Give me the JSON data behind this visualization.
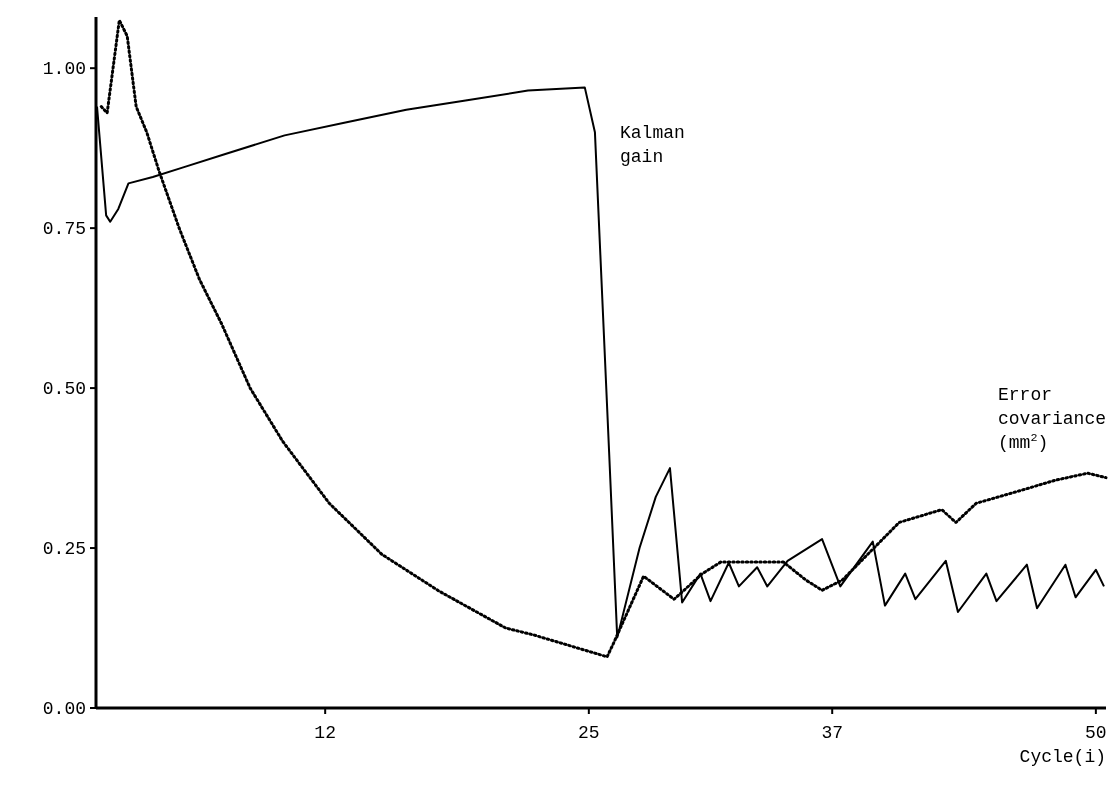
{
  "chart_data": {
    "type": "line",
    "xlabel": "Cycle(i)",
    "xlim": [
      0.7,
      50.5
    ],
    "xticks": [
      12,
      25,
      37,
      50
    ],
    "ylim": [
      0,
      1.08
    ],
    "yticks": [
      {
        "value": 1,
        "label": "1.00"
      },
      {
        "value": 0.75,
        "label": "0.75"
      },
      {
        "value": 0.5,
        "label": "0.50"
      },
      {
        "value": 0.25,
        "label": "0.25"
      },
      {
        "value": 0,
        "label": "0.00"
      }
    ],
    "grid": false,
    "marker": "none",
    "series": [
      {
        "name": "Kalman gain",
        "color": "#000000",
        "line_style": "solid",
        "x": [
          0.75,
          1.2,
          1.4,
          1.8,
          2.3,
          3.5,
          5,
          7,
          10,
          13,
          16,
          19,
          22,
          24.8,
          25.3,
          26,
          26.4,
          27.5,
          28.3,
          29,
          29.6,
          30.5,
          31,
          31.9,
          32.4,
          33.3,
          33.8,
          34.8,
          36.5,
          37.4,
          39,
          39.6,
          40.6,
          41.1,
          42.6,
          43.2,
          44.6,
          45.1,
          46.6,
          47.1,
          48.5,
          49,
          50,
          50.4
        ],
        "values": [
          0.94,
          0.77,
          0.76,
          0.78,
          0.82,
          0.83,
          0.845,
          0.865,
          0.895,
          0.915,
          0.935,
          0.95,
          0.965,
          0.97,
          0.9,
          0.4,
          0.11,
          0.25,
          0.33,
          0.375,
          0.165,
          0.21,
          0.167,
          0.227,
          0.19,
          0.22,
          0.19,
          0.23,
          0.264,
          0.19,
          0.26,
          0.16,
          0.21,
          0.17,
          0.23,
          0.15,
          0.21,
          0.167,
          0.224,
          0.156,
          0.224,
          0.173,
          0.216,
          0.19
        ]
      },
      {
        "name": "Error covariance (mm$^{2}$)",
        "color": "#000000",
        "line_style": "dotted",
        "x": [
          0.96,
          1.25,
          1.85,
          2.24,
          2.68,
          3.2,
          3.8,
          4.8,
          5.8,
          6.9,
          8.3,
          9.9,
          12.2,
          14.8,
          17.6,
          20.9,
          22.3,
          25.9,
          26.2,
          27.7,
          29.2,
          30.6,
          31.5,
          34.6,
          35.7,
          36.5,
          37.5,
          38.9,
          40.3,
          42.4,
          43.1,
          44.1,
          46.3,
          48,
          49.6,
          50.5
        ],
        "values": [
          0.94,
          0.93,
          1.075,
          1.05,
          0.94,
          0.9,
          0.84,
          0.75,
          0.67,
          0.6,
          0.5,
          0.417,
          0.32,
          0.24,
          0.183,
          0.125,
          0.114,
          0.08,
          0.1,
          0.206,
          0.17,
          0.21,
          0.228,
          0.228,
          0.2,
          0.184,
          0.2,
          0.245,
          0.29,
          0.31,
          0.29,
          0.32,
          0.34,
          0.356,
          0.367,
          0.36
        ]
      }
    ]
  }
}
